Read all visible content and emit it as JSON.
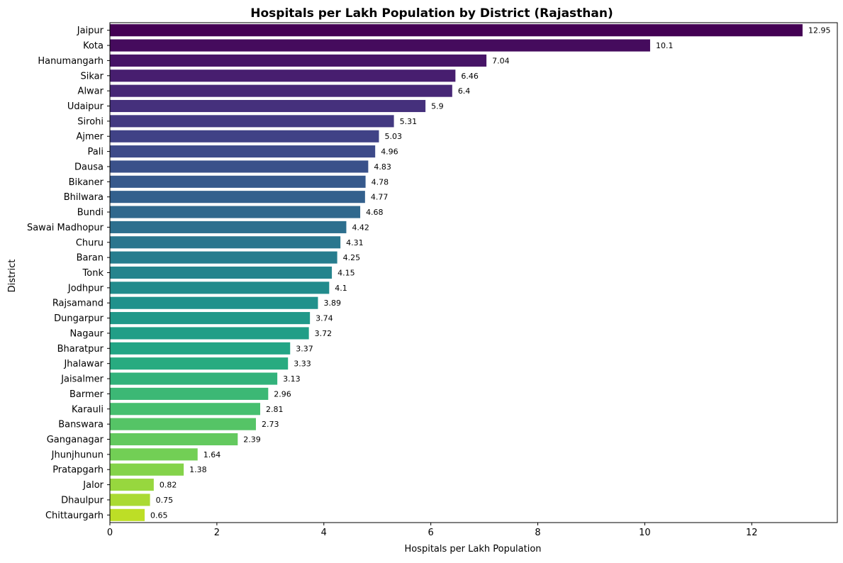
{
  "chart_data": {
    "type": "bar",
    "orientation": "horizontal",
    "title": "Hospitals per Lakh Population by District (Rajasthan)",
    "xlabel": "Hospitals per Lakh Population",
    "ylabel": "District",
    "xlim": [
      0,
      13.6
    ],
    "xticks": [
      0,
      2,
      4,
      6,
      8,
      10,
      12
    ],
    "grid": false,
    "legend": "none",
    "colormap": "viridis",
    "categories": [
      "Jaipur",
      "Kota",
      "Hanumangarh",
      "Sikar",
      "Alwar",
      "Udaipur",
      "Sirohi",
      "Ajmer",
      "Pali",
      "Dausa",
      "Bikaner",
      "Bhilwara",
      "Bundi",
      "Sawai Madhopur",
      "Churu",
      "Baran",
      "Tonk",
      "Jodhpur",
      "Rajsamand",
      "Dungarpur",
      "Nagaur",
      "Bharatpur",
      "Jhalawar",
      "Jaisalmer",
      "Barmer",
      "Karauli",
      "Banswara",
      "Ganganagar",
      "Jhunjhunun",
      "Pratapgarh",
      "Jalor",
      "Dhaulpur",
      "Chittaurgarh"
    ],
    "values": [
      12.95,
      10.1,
      7.04,
      6.46,
      6.4,
      5.9,
      5.31,
      5.03,
      4.96,
      4.83,
      4.78,
      4.77,
      4.68,
      4.42,
      4.31,
      4.25,
      4.15,
      4.1,
      3.89,
      3.74,
      3.72,
      3.37,
      3.33,
      3.13,
      2.96,
      2.81,
      2.73,
      2.39,
      1.64,
      1.38,
      0.82,
      0.75,
      0.65
    ],
    "value_labels": [
      "12.95",
      "10.1",
      "7.04",
      "6.46",
      "6.4",
      "5.9",
      "5.31",
      "5.03",
      "4.96",
      "4.83",
      "4.78",
      "4.77",
      "4.68",
      "4.42",
      "4.31",
      "4.25",
      "4.15",
      "4.1",
      "3.89",
      "3.74",
      "3.72",
      "3.37",
      "3.33",
      "3.13",
      "2.96",
      "2.81",
      "2.73",
      "2.39",
      "1.64",
      "1.38",
      "0.82",
      "0.75",
      "0.65"
    ]
  }
}
